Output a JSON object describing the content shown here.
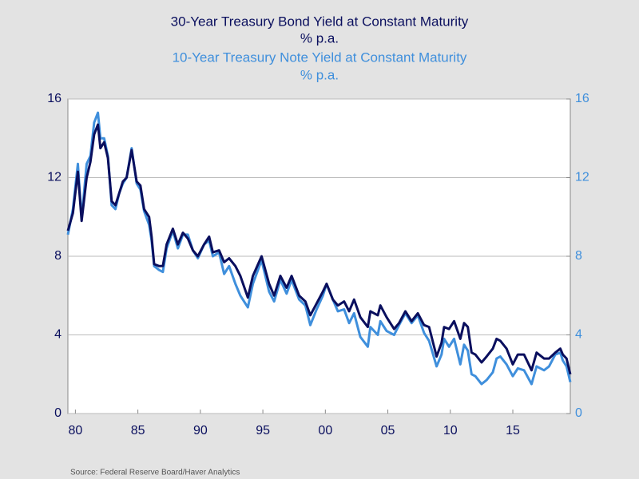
{
  "chart_data": {
    "type": "line",
    "series": [
      {
        "name": "30-Year Treasury Bond Yield at Constant Maturity",
        "unit": "% p.a.",
        "color": "#0a0f5e",
        "axis": "y",
        "values": [
          9.3,
          10.2,
          12.3,
          9.8,
          12.0,
          12.8,
          14.2,
          14.7,
          13.5,
          13.8,
          13.0,
          10.8,
          10.6,
          11.2,
          11.8,
          12.0,
          13.4,
          11.8,
          11.6,
          10.4,
          10.0,
          9.0,
          7.6,
          7.5,
          7.5,
          8.6,
          9.4,
          8.6,
          9.2,
          8.9,
          8.3,
          8.0,
          8.6,
          9.0,
          8.2,
          8.3,
          7.7,
          7.9,
          7.5,
          7.0,
          5.9,
          7.0,
          8.0,
          6.6,
          6.0,
          7.0,
          6.4,
          7.0,
          6.0,
          5.7,
          5.0,
          5.6,
          6.2,
          6.6,
          5.8,
          5.5,
          5.7,
          5.2,
          5.8,
          4.9,
          4.4,
          5.2,
          5.0,
          5.5,
          4.9,
          4.3,
          4.6,
          5.2,
          4.7,
          5.1,
          4.5,
          4.4,
          2.9,
          3.6,
          4.4,
          4.3,
          4.7,
          3.8,
          4.6,
          4.4,
          3.1,
          3.0,
          2.6,
          2.9,
          3.3,
          3.8,
          3.7,
          3.3,
          2.5,
          3.0,
          3.0,
          2.2,
          3.1,
          2.8,
          2.8,
          3.1,
          3.3,
          3.0,
          2.8,
          2.0
        ]
      },
      {
        "name": "10-Year Treasury Note Yield at Constant Maturity",
        "unit": "% p.a.",
        "color": "#3f8fdc",
        "axis": "y2",
        "values": [
          9.1,
          10.4,
          12.7,
          9.9,
          12.7,
          13.1,
          14.8,
          15.3,
          14.0,
          14.0,
          13.1,
          10.6,
          10.4,
          11.2,
          11.7,
          12.0,
          13.5,
          11.7,
          11.4,
          10.3,
          9.6,
          8.8,
          7.5,
          7.3,
          7.2,
          8.4,
          9.3,
          8.4,
          9.1,
          9.1,
          8.3,
          7.9,
          8.6,
          8.8,
          8.0,
          8.2,
          7.1,
          7.5,
          6.6,
          6.0,
          5.4,
          6.6,
          7.8,
          6.2,
          5.7,
          6.8,
          6.1,
          6.8,
          5.8,
          5.5,
          4.5,
          5.3,
          6.0,
          6.6,
          5.8,
          5.2,
          5.3,
          4.6,
          5.1,
          3.9,
          3.4,
          4.4,
          4.0,
          4.7,
          4.2,
          4.0,
          4.5,
          5.1,
          4.6,
          5.0,
          4.1,
          3.7,
          2.4,
          3.0,
          3.8,
          3.4,
          3.8,
          2.5,
          3.5,
          3.2,
          2.0,
          1.9,
          1.5,
          1.7,
          2.1,
          2.8,
          2.9,
          2.5,
          1.9,
          2.3,
          2.2,
          1.5,
          2.4,
          2.2,
          2.4,
          3.0,
          3.1,
          2.7,
          2.4,
          1.6
        ]
      }
    ],
    "x": [
      1979.4,
      1979.8,
      1980.2,
      1980.5,
      1980.9,
      1981.2,
      1981.5,
      1981.8,
      1982.0,
      1982.3,
      1982.6,
      1982.9,
      1983.2,
      1983.5,
      1983.8,
      1984.1,
      1984.5,
      1984.9,
      1985.2,
      1985.5,
      1985.9,
      1986.1,
      1986.3,
      1986.7,
      1987.0,
      1987.3,
      1987.8,
      1988.2,
      1988.6,
      1989.0,
      1989.4,
      1989.8,
      1990.3,
      1990.7,
      1991.0,
      1991.5,
      1991.9,
      1992.3,
      1992.8,
      1993.2,
      1993.8,
      1994.2,
      1994.9,
      1995.5,
      1995.9,
      1996.4,
      1996.9,
      1997.3,
      1997.9,
      1998.4,
      1998.8,
      1999.3,
      1999.8,
      2000.1,
      2000.6,
      2001.0,
      2001.5,
      2001.9,
      2002.3,
      2002.8,
      2003.4,
      2003.6,
      2004.2,
      2004.4,
      2004.9,
      2005.5,
      2005.9,
      2006.4,
      2006.9,
      2007.4,
      2007.9,
      2008.3,
      2008.9,
      2009.3,
      2009.5,
      2009.9,
      2010.3,
      2010.8,
      2011.1,
      2011.4,
      2011.7,
      2012.0,
      2012.5,
      2012.9,
      2013.4,
      2013.7,
      2014.0,
      2014.5,
      2015.0,
      2015.4,
      2015.9,
      2016.5,
      2016.9,
      2017.5,
      2017.9,
      2018.4,
      2018.8,
      2019.0,
      2019.3,
      2019.6
    ],
    "xlim": [
      1979.4,
      2019.6
    ],
    "xticks": [
      {
        "value": 1980,
        "label": "80"
      },
      {
        "value": 1985,
        "label": "85"
      },
      {
        "value": 1990,
        "label": "90"
      },
      {
        "value": 1995,
        "label": "95"
      },
      {
        "value": 2000,
        "label": "00"
      },
      {
        "value": 2005,
        "label": "05"
      },
      {
        "value": 2010,
        "label": "10"
      },
      {
        "value": 2015,
        "label": "15"
      }
    ],
    "ylim": [
      0,
      16
    ],
    "yticks": [
      0,
      4,
      8,
      12,
      16
    ],
    "y2lim": [
      0,
      16
    ],
    "y2ticks": [
      0,
      4,
      8,
      12,
      16
    ],
    "grid": true,
    "source": "Source:  Federal Reserve Board/Haver Analytics"
  }
}
